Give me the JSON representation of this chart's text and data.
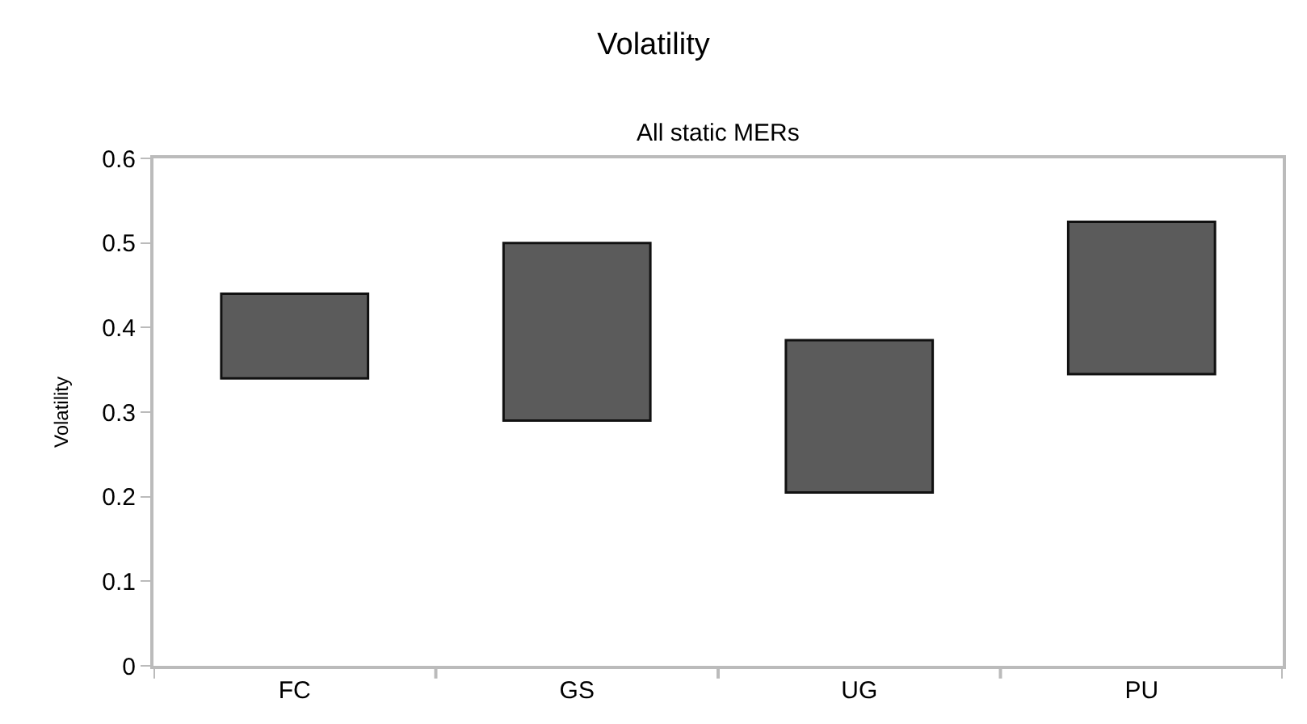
{
  "chart_data": {
    "type": "bar",
    "title": "Volatility",
    "subtitle": "All static MERs",
    "ylabel": "Volatility",
    "categories": [
      "FC",
      "GS",
      "UG",
      "PU"
    ],
    "base": [
      0.34,
      0.29,
      0.205,
      0.345
    ],
    "values": [
      0.1,
      0.21,
      0.18,
      0.18
    ],
    "color": "#5b5b5b",
    "ylim": [
      0,
      0.6
    ],
    "yticks": [
      0,
      0.1,
      0.2,
      0.3,
      0.4,
      0.5,
      0.6
    ],
    "grid": false,
    "legend": false
  }
}
